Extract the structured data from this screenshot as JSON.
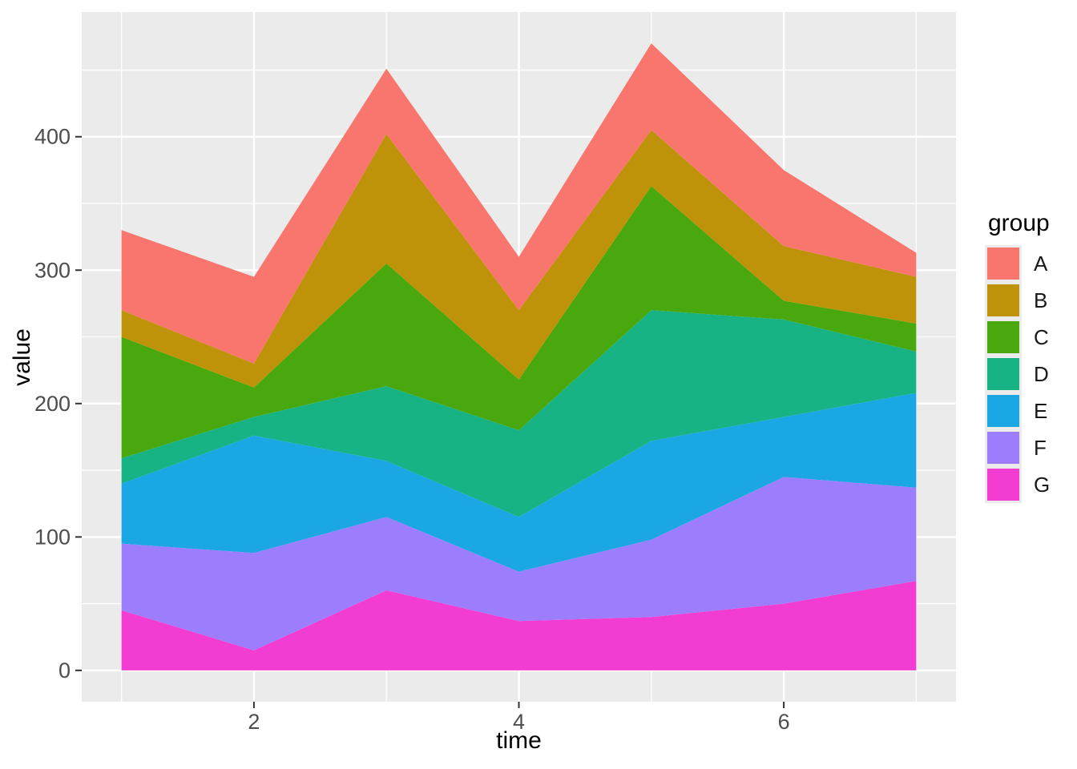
{
  "figure": {
    "background": "#FFFFFF"
  },
  "panel": {
    "background": "#EBEBEB",
    "grid_major_color": "#FFFFFF",
    "grid_minor_color": "#FFFFFF",
    "tick_mark_color": "#333333",
    "tick_label_color": "#4D4D4D",
    "axis_title_color": "#000000"
  },
  "axes": {
    "x": {
      "title": "time",
      "tick_labels": [
        "2",
        "4",
        "6"
      ],
      "ticks": [
        2,
        4,
        6
      ],
      "minor_ticks": [
        1,
        3,
        5,
        7
      ],
      "domain": [
        0.7,
        7.3
      ]
    },
    "y": {
      "title": "value",
      "tick_labels": [
        "0",
        "100",
        "200",
        "300",
        "400"
      ],
      "ticks": [
        0,
        100,
        200,
        300,
        400
      ],
      "minor_ticks": [
        50,
        150,
        250,
        350,
        450
      ],
      "domain": [
        -23.5,
        493.5
      ]
    }
  },
  "legend": {
    "title": "group",
    "entries": [
      {
        "label": "A",
        "color": "#F8766D"
      },
      {
        "label": "B",
        "color": "#BF9309"
      },
      {
        "label": "C",
        "color": "#49A80E"
      },
      {
        "label": "D",
        "color": "#17B385"
      },
      {
        "label": "E",
        "color": "#1AA7E3"
      },
      {
        "label": "F",
        "color": "#9C7EFC"
      },
      {
        "label": "G",
        "color": "#F23CD2"
      }
    ]
  },
  "chart_data": {
    "type": "area",
    "stacked": true,
    "title": "",
    "xlabel": "time",
    "ylabel": "value",
    "x": [
      1,
      2,
      3,
      4,
      5,
      6,
      7
    ],
    "series": [
      {
        "name": "A",
        "color": "#F8766D",
        "values": [
          60,
          65,
          49,
          40,
          65,
          57,
          18
        ]
      },
      {
        "name": "B",
        "color": "#BF9309",
        "values": [
          20,
          18,
          97,
          52,
          42,
          41,
          35
        ]
      },
      {
        "name": "C",
        "color": "#49A80E",
        "values": [
          91,
          22,
          92,
          38,
          93,
          14,
          21
        ]
      },
      {
        "name": "D",
        "color": "#17B385",
        "values": [
          19,
          14,
          56,
          65,
          98,
          73,
          31
        ]
      },
      {
        "name": "E",
        "color": "#1AA7E3",
        "values": [
          45,
          88,
          42,
          41,
          74,
          45,
          71
        ]
      },
      {
        "name": "F",
        "color": "#9C7EFC",
        "values": [
          50,
          73,
          55,
          37,
          58,
          95,
          70
        ]
      },
      {
        "name": "G",
        "color": "#F23CD2",
        "values": [
          45,
          15,
          60,
          37,
          40,
          50,
          67
        ]
      }
    ],
    "stack_order_bottom_to_top": [
      "G",
      "F",
      "E",
      "D",
      "C",
      "B",
      "A"
    ],
    "stack_totals": [
      330,
      295,
      451,
      310,
      470,
      375,
      313
    ],
    "xlim": [
      1,
      7
    ],
    "ylim": [
      0,
      470
    ],
    "grid": true,
    "legend_position": "right"
  }
}
